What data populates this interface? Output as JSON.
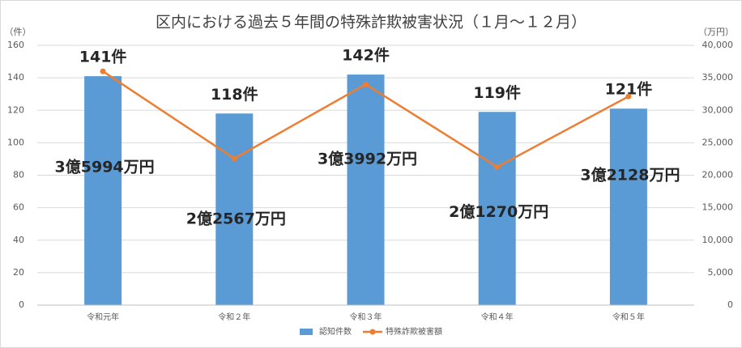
{
  "chart_data": {
    "type": "bar",
    "title": "区内における過去５年間の特殊詐欺被害状況（１月～１２月）",
    "y_label": "（件）",
    "y2_label": "（万円）",
    "categories": [
      "令和元年",
      "令和２年",
      "令和３年",
      "令和４年",
      "令和５年"
    ],
    "series": [
      {
        "name": "認知件数",
        "type": "bar",
        "color": "#5b9bd5",
        "values": [
          141,
          118,
          142,
          119,
          121
        ],
        "value_labels": [
          "141件",
          "118件",
          "142件",
          "119件",
          "121件"
        ]
      },
      {
        "name": "特殊詐欺被害額",
        "type": "line",
        "axis": "y2",
        "color": "#ed7d31",
        "values": [
          35994,
          22567,
          33992,
          21270,
          32128
        ],
        "value_labels": [
          "3億5994万円",
          "2億2567万円",
          "3億3992万円",
          "2億1270万円",
          "3億2128万円"
        ]
      }
    ],
    "ylim": [
      0,
      160
    ],
    "yticks": [
      0,
      20,
      40,
      60,
      80,
      100,
      120,
      140,
      160
    ],
    "y2lim": [
      0,
      40000
    ],
    "y2ticks": [
      0,
      {
        "value": 5000,
        "label": "5,000"
      },
      {
        "value": 10000,
        "label": "10,000"
      },
      {
        "value": 15000,
        "label": "15,000"
      },
      {
        "value": 20000,
        "label": "20,000"
      },
      {
        "value": 25000,
        "label": "25,000"
      },
      {
        "value": 30000,
        "label": "30,000"
      },
      {
        "value": 35000,
        "label": "35,000"
      },
      {
        "value": 40000,
        "label": "40,000"
      }
    ],
    "grid": true,
    "legend": "bottom"
  }
}
